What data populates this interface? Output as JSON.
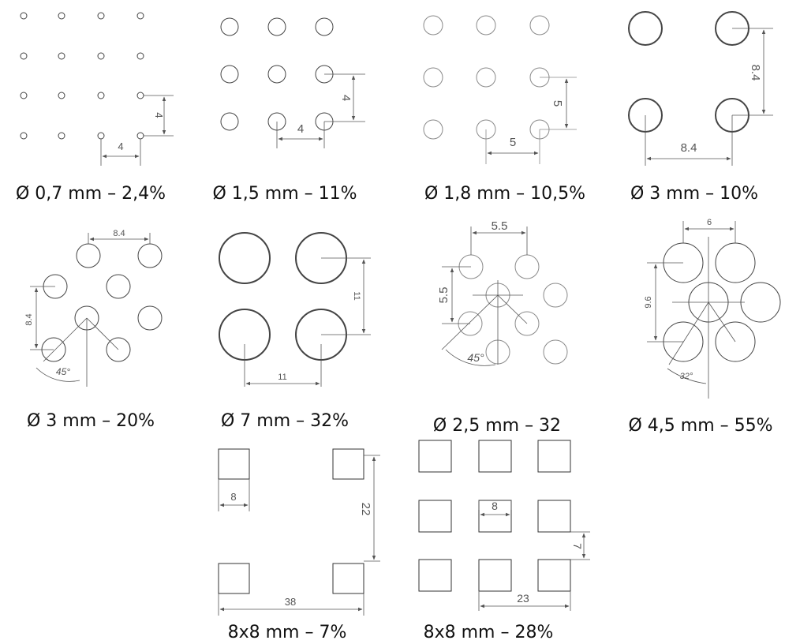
{
  "patterns": [
    {
      "caption": "Ø 0,7 mm – 2,4%",
      "dims": [
        "4",
        "4"
      ]
    },
    {
      "caption": "Ø 1,5 mm – 11%",
      "dims": [
        "4",
        "4"
      ]
    },
    {
      "caption": "Ø 1,8 mm – 10,5%",
      "dims": [
        "5",
        "5"
      ]
    },
    {
      "caption": "Ø 3 mm – 10%",
      "dims": [
        "8.4",
        "8.4"
      ]
    },
    {
      "caption": "Ø 3 mm – 20%",
      "dims": [
        "8.4",
        "8.4",
        "45°"
      ]
    },
    {
      "caption": "Ø 7 mm – 32%",
      "dims": [
        "11",
        "11"
      ]
    },
    {
      "caption": "Ø 2,5 mm – 32",
      "dims": [
        "5.5",
        "5.5",
        "45°"
      ]
    },
    {
      "caption": "Ø 4,5 mm – 55%",
      "dims": [
        "6",
        "9.6",
        "32°"
      ]
    },
    {
      "caption": "8x8 mm – 7%",
      "dims": [
        "8",
        "22",
        "38"
      ]
    },
    {
      "caption": "8x8 mm – 28%",
      "dims": [
        "8",
        "7",
        "23"
      ]
    }
  ]
}
